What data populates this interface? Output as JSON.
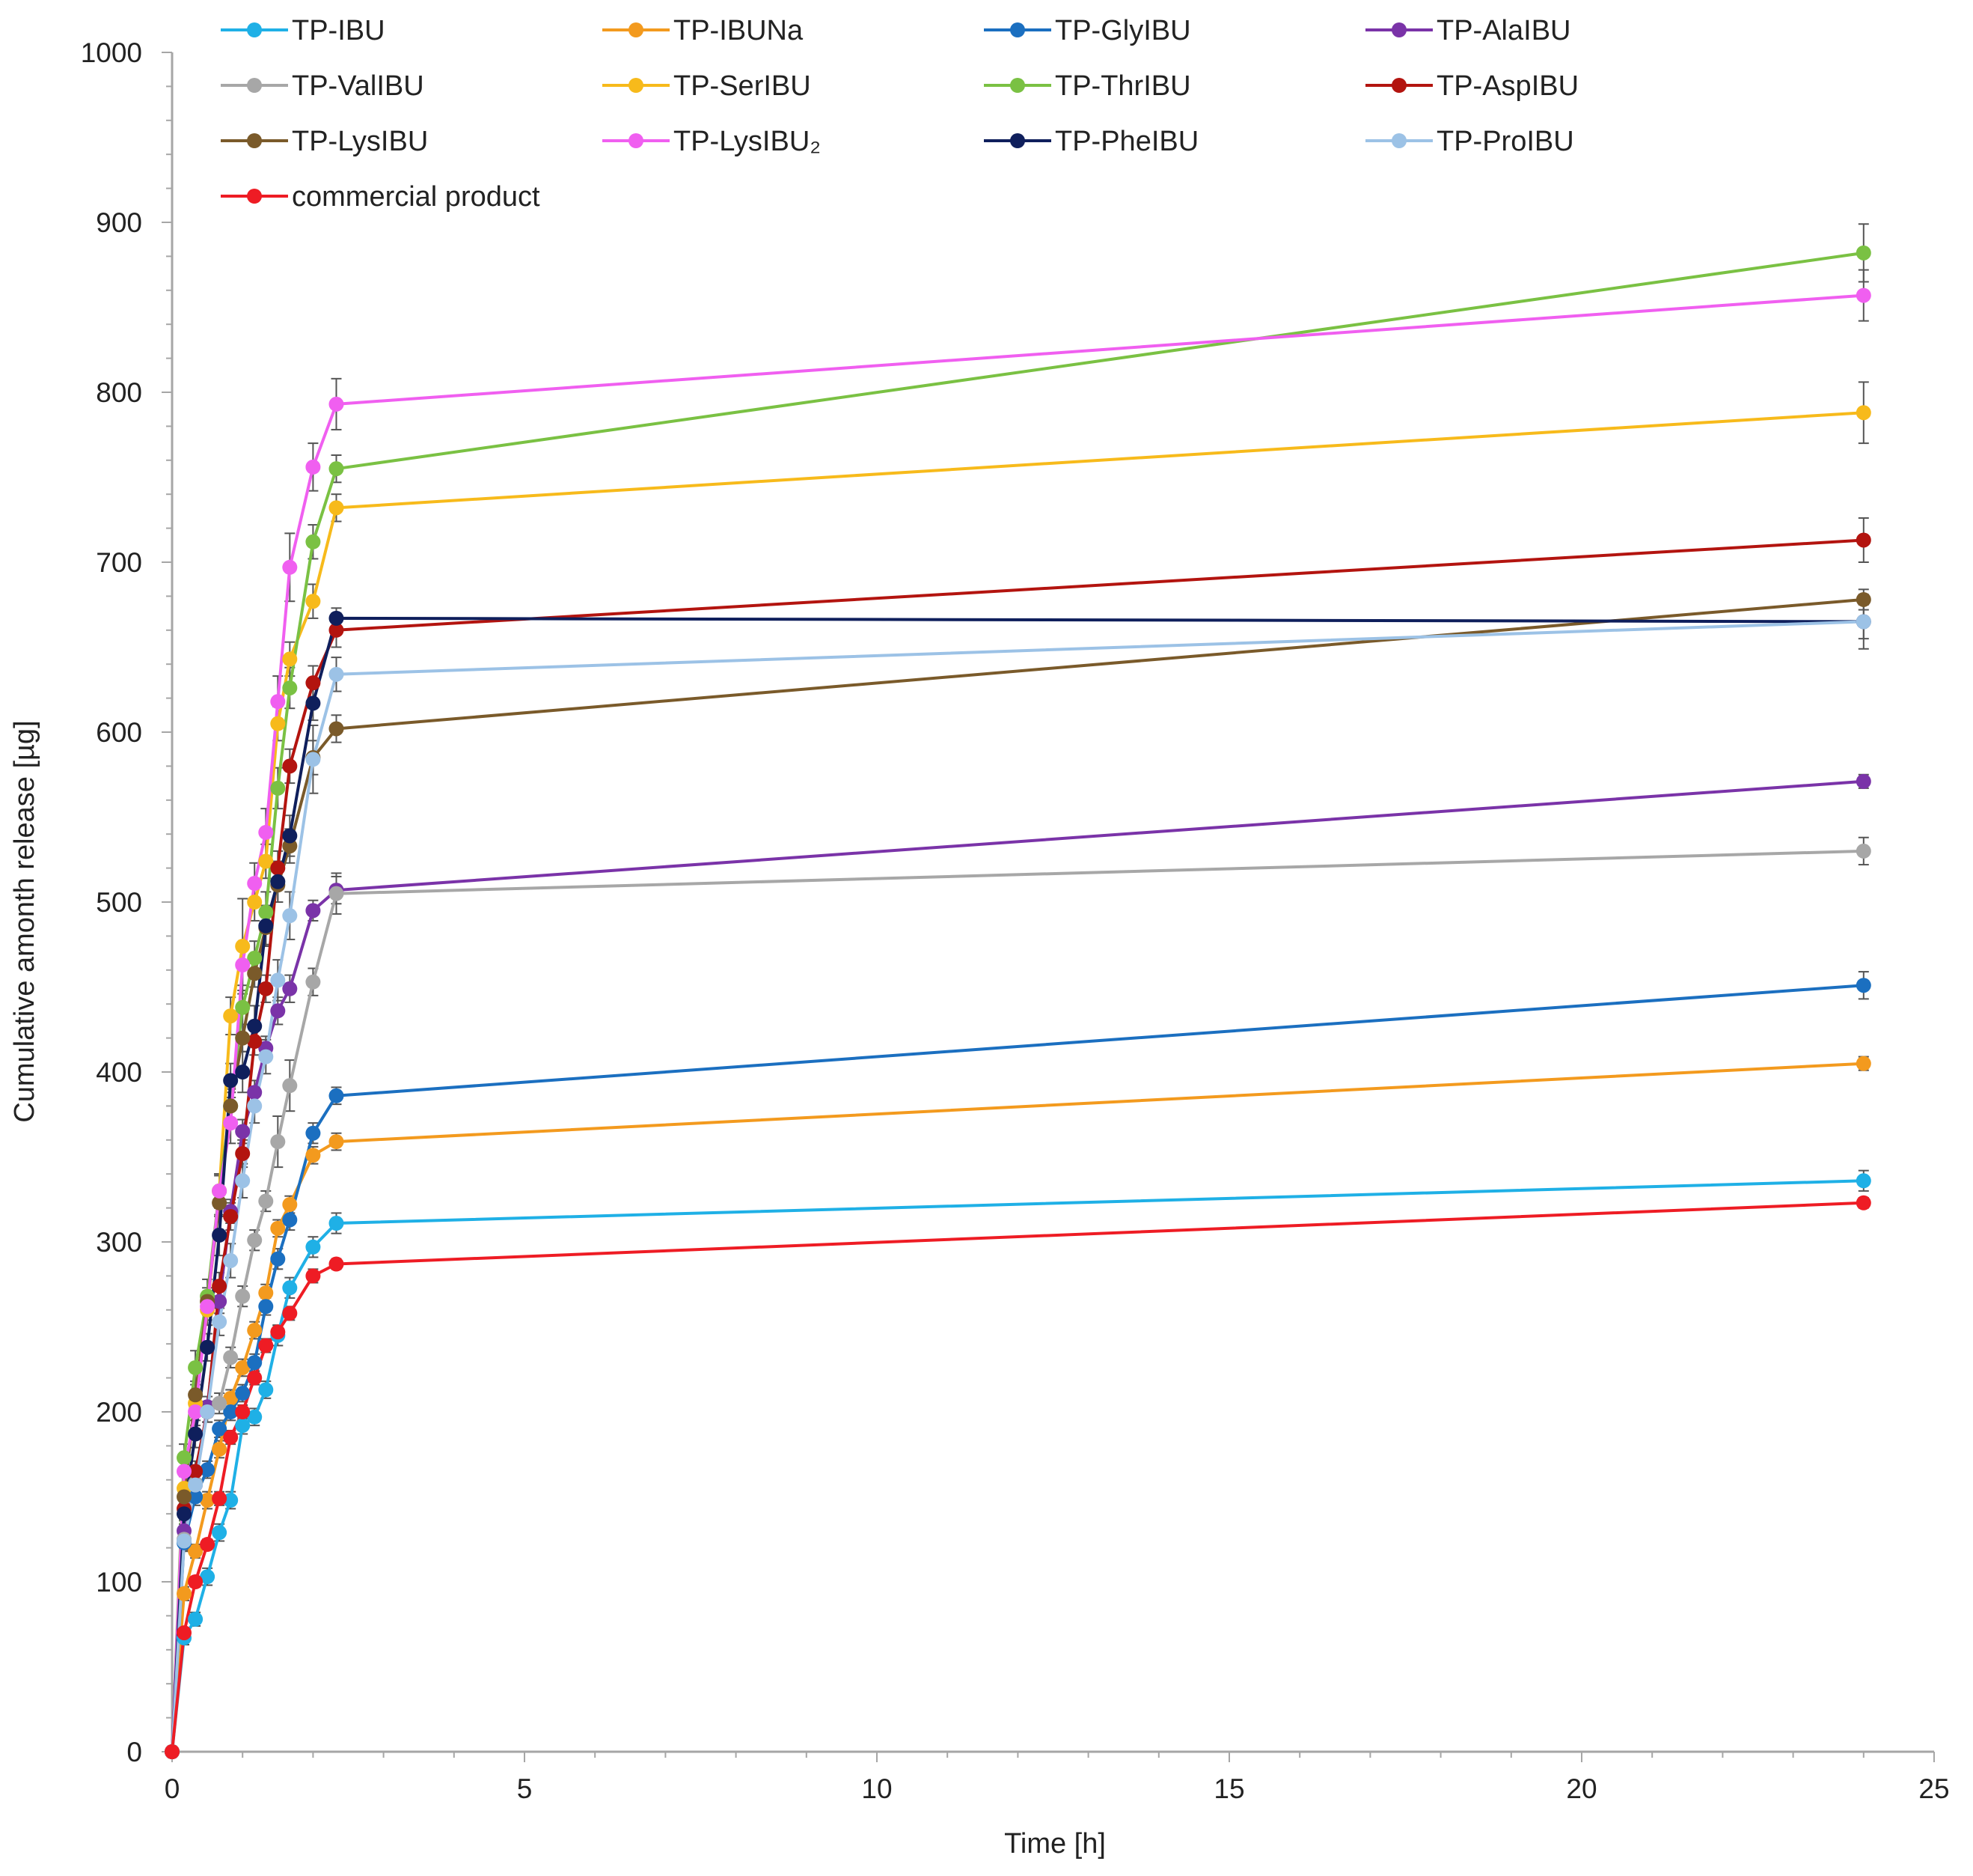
{
  "chart_data": {
    "type": "line",
    "title": "",
    "xlabel": "Time [h]",
    "ylabel": "Cumulative amonth release [µg]",
    "xlim": [
      0,
      25
    ],
    "ylim": [
      0,
      1000
    ],
    "xticks": [
      0,
      5,
      10,
      15,
      20,
      25
    ],
    "yticks": [
      0,
      100,
      200,
      300,
      400,
      500,
      600,
      700,
      800,
      900,
      1000
    ],
    "grid": false,
    "legend_position": "top",
    "x": [
      0,
      0.17,
      0.33,
      0.5,
      0.67,
      0.83,
      1,
      1.17,
      1.33,
      1.5,
      1.67,
      2,
      2.33,
      24
    ],
    "series": [
      {
        "name": "TP-IBU",
        "color": "#1fb0e6",
        "values": [
          0,
          67,
          78,
          103,
          129,
          148,
          192,
          197,
          213,
          245,
          273,
          297,
          311,
          336
        ],
        "errors": [
          0,
          4,
          4,
          5,
          5,
          5,
          5,
          5,
          5,
          6,
          6,
          6,
          6,
          6
        ]
      },
      {
        "name": "TP-IBUNa",
        "color": "#f39a1e",
        "values": [
          0,
          93,
          118,
          148,
          178,
          208,
          226,
          248,
          270,
          308,
          322,
          351,
          359,
          405
        ],
        "errors": [
          0,
          4,
          4,
          5,
          5,
          5,
          5,
          5,
          5,
          5,
          5,
          5,
          5,
          4
        ]
      },
      {
        "name": "TP-GlyIBU",
        "color": "#1b6fc0",
        "values": [
          0,
          123,
          150,
          166,
          190,
          200,
          211,
          229,
          262,
          290,
          313,
          364,
          386,
          451
        ],
        "errors": [
          0,
          5,
          5,
          5,
          5,
          5,
          5,
          5,
          5,
          6,
          6,
          6,
          5,
          8
        ]
      },
      {
        "name": "TP-AlaIBU",
        "color": "#7a33a8",
        "values": [
          0,
          130,
          157,
          203,
          265,
          318,
          365,
          388,
          414,
          436,
          449,
          495,
          507,
          571
        ],
        "errors": [
          0,
          6,
          6,
          6,
          7,
          7,
          7,
          7,
          7,
          8,
          8,
          6,
          8,
          4
        ]
      },
      {
        "name": "TP-ValIBU",
        "color": "#a7a7a7",
        "values": [
          0,
          125,
          158,
          200,
          205,
          232,
          268,
          301,
          324,
          359,
          392,
          453,
          505,
          530
        ],
        "errors": [
          0,
          6,
          6,
          6,
          6,
          6,
          6,
          6,
          6,
          15,
          15,
          8,
          12,
          8
        ]
      },
      {
        "name": "TP-SerIBU",
        "color": "#f7ba1b",
        "values": [
          0,
          155,
          205,
          260,
          330,
          433,
          474,
          500,
          524,
          605,
          643,
          677,
          732,
          788
        ],
        "errors": [
          0,
          7,
          7,
          9,
          9,
          11,
          28,
          11,
          10,
          10,
          10,
          10,
          8,
          18
        ]
      },
      {
        "name": "TP-ThrIBU",
        "color": "#7ac143",
        "values": [
          0,
          173,
          226,
          268,
          330,
          380,
          438,
          467,
          494,
          567,
          626,
          712,
          755,
          882
        ],
        "errors": [
          0,
          8,
          10,
          10,
          10,
          10,
          10,
          10,
          12,
          12,
          12,
          10,
          8,
          17
        ]
      },
      {
        "name": "TP-AspIBU",
        "color": "#b3140f",
        "values": [
          0,
          143,
          165,
          200,
          274,
          315,
          352,
          418,
          449,
          520,
          580,
          629,
          660,
          713
        ],
        "errors": [
          0,
          6,
          6,
          6,
          8,
          8,
          8,
          8,
          8,
          10,
          10,
          10,
          10,
          13
        ]
      },
      {
        "name": "TP-LysIBU",
        "color": "#7a5a2a",
        "values": [
          0,
          150,
          210,
          265,
          323,
          380,
          420,
          458,
          485,
          510,
          533,
          585,
          602,
          678
        ],
        "errors": [
          0,
          7,
          8,
          8,
          8,
          8,
          8,
          8,
          10,
          10,
          10,
          10,
          8,
          6
        ]
      },
      {
        "name": "TP-LysIBU₂",
        "color": "#f05ff0",
        "values": [
          0,
          165,
          200,
          262,
          330,
          370,
          463,
          511,
          541,
          618,
          697,
          756,
          793,
          857
        ],
        "errors": [
          0,
          8,
          8,
          8,
          10,
          12,
          12,
          12,
          14,
          15,
          20,
          14,
          15,
          15
        ]
      },
      {
        "name": "TP-PheIBU",
        "color": "#0f1f5c",
        "values": [
          0,
          140,
          187,
          238,
          304,
          395,
          400,
          427,
          486,
          512,
          539,
          617,
          667,
          665
        ],
        "errors": [
          0,
          6,
          8,
          8,
          12,
          10,
          12,
          12,
          12,
          12,
          12,
          10,
          6,
          10
        ]
      },
      {
        "name": "TP-ProIBU",
        "color": "#9cc2e6",
        "values": [
          0,
          124,
          157,
          200,
          253,
          289,
          336,
          380,
          409,
          454,
          492,
          584,
          634,
          665
        ],
        "errors": [
          0,
          6,
          6,
          6,
          8,
          10,
          10,
          10,
          10,
          12,
          14,
          20,
          10,
          16
        ]
      },
      {
        "name": "commercial product",
        "color": "#ee1c24",
        "values": [
          0,
          70,
          100,
          122,
          149,
          185,
          200,
          220,
          239,
          247,
          258,
          280,
          287,
          323
        ],
        "errors": [
          0,
          3,
          3,
          3,
          4,
          4,
          4,
          4,
          4,
          4,
          4,
          4,
          3,
          3
        ]
      }
    ]
  }
}
